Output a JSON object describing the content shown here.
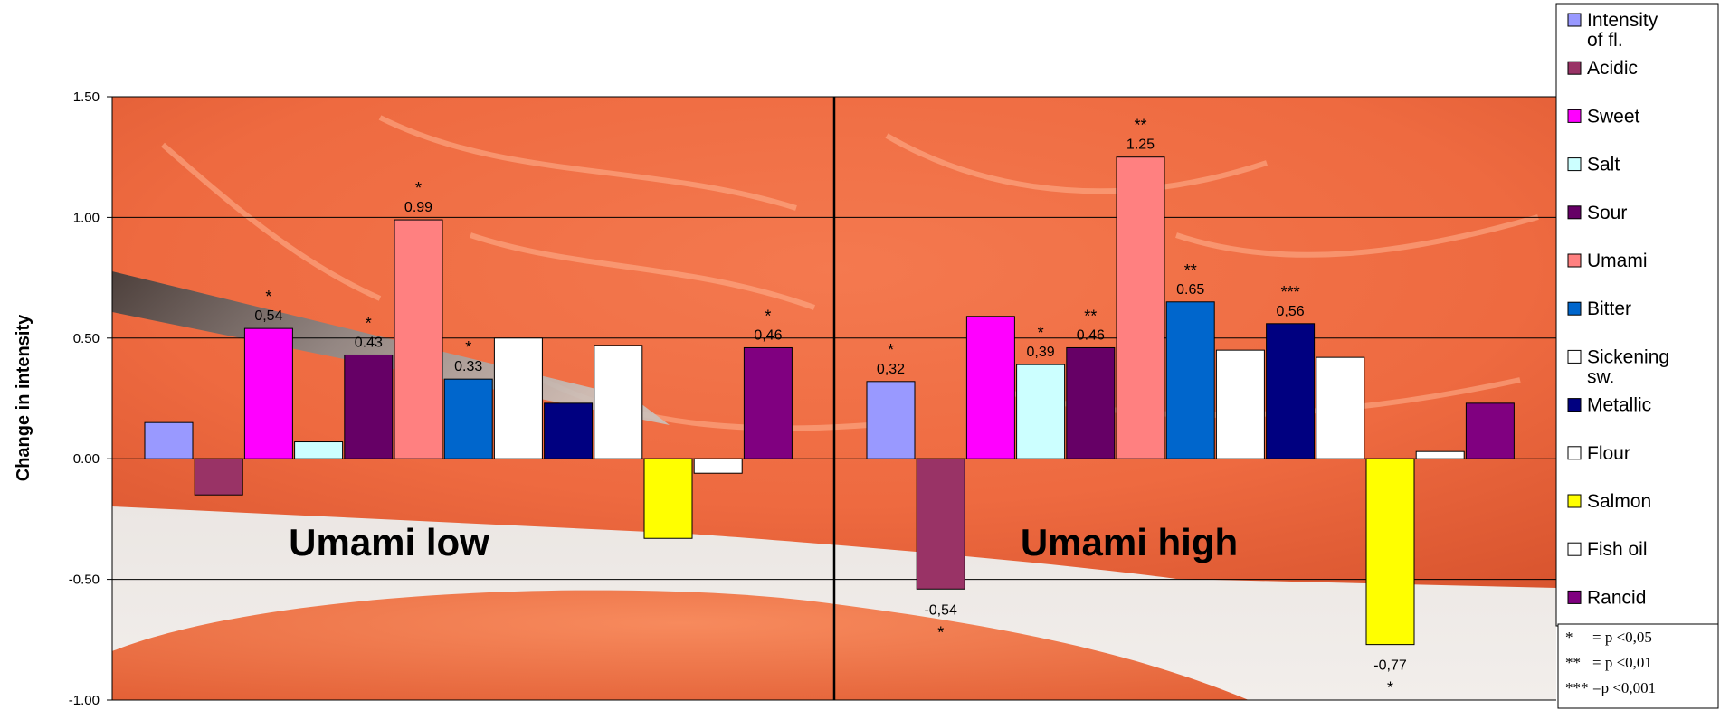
{
  "chart_data": {
    "type": "bar",
    "title": "",
    "ylabel": "Change in intensity",
    "ylim": [
      -1.0,
      1.5
    ],
    "yticks": [
      "1.50",
      "1.00",
      "0.50",
      "0.00",
      "-0.50",
      "-1.00"
    ],
    "grid": true,
    "legend_position": "right",
    "groups": [
      {
        "name": "Umami low",
        "values": [
          0.15,
          -0.15,
          0.54,
          0.07,
          0.43,
          0.99,
          0.33,
          0.5,
          0.23,
          0.47,
          -0.33,
          -0.06,
          0.46
        ],
        "value_labels": [
          "",
          "",
          "0,54",
          "",
          "0.43",
          "0.99",
          "0.33",
          "",
          "",
          "",
          "",
          "",
          "0,46"
        ],
        "significance": [
          "",
          "",
          "*",
          "",
          "*",
          "*",
          "*",
          "",
          "",
          "",
          "",
          "",
          "*"
        ]
      },
      {
        "name": "Umami high",
        "values": [
          0.32,
          -0.54,
          0.59,
          0.39,
          0.46,
          1.25,
          0.65,
          0.45,
          0.56,
          0.42,
          -0.77,
          0.03,
          0.23
        ],
        "value_labels": [
          "0,32",
          "-0,54",
          "",
          "0,39",
          "0.46",
          "1.25",
          "0.65",
          "",
          "0,56",
          "",
          "-0,77",
          "",
          ""
        ],
        "significance": [
          "*",
          "*",
          "",
          "*",
          "**",
          "**",
          "**",
          "",
          "***",
          "",
          "*",
          "",
          ""
        ]
      }
    ],
    "series": [
      {
        "name": "Intensity of fl.",
        "color": "#9999ff"
      },
      {
        "name": "Acidic",
        "color": "#993366"
      },
      {
        "name": "Sweet",
        "color": "#ff00ff"
      },
      {
        "name": "Salt",
        "color": "#ccffff"
      },
      {
        "name": "Sour",
        "color": "#660066"
      },
      {
        "name": "Umami",
        "color": "#ff8080"
      },
      {
        "name": "Bitter",
        "color": "#0066cc"
      },
      {
        "name": "Sickening sw.",
        "color": "#ffffff"
      },
      {
        "name": "Metallic",
        "color": "#000080"
      },
      {
        "name": "Flour",
        "color": "#ffffff"
      },
      {
        "name": "Salmon",
        "color": "#ffff00"
      },
      {
        "name": "Fish oil",
        "color": "#ffffff"
      },
      {
        "name": "Rancid",
        "color": "#800080"
      }
    ],
    "significance_key": [
      {
        "symbol": "*",
        "meaning": "= p <0,05"
      },
      {
        "symbol": "**",
        "meaning": "= p <0,01"
      },
      {
        "symbol": "***",
        "meaning": "=p <0,001"
      }
    ]
  }
}
